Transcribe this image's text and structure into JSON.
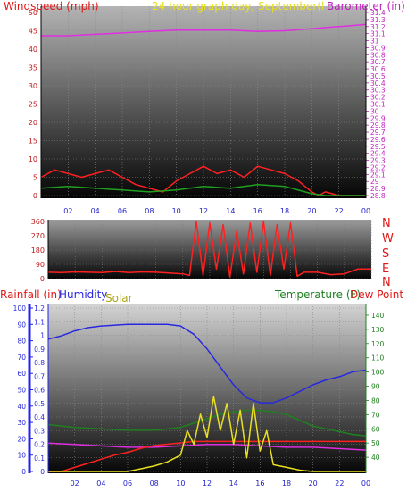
{
  "chart_data": [
    {
      "type": "line",
      "title": "24 hour graph day, September(l",
      "left_axis_label": "Windspeed (mph)",
      "right_axis_label": "Barometer (in)",
      "x_ticks": [
        "02",
        "04",
        "06",
        "08",
        "10",
        "12",
        "14",
        "16",
        "18",
        "20",
        "22",
        "00"
      ],
      "y_left_ticks": [
        "0",
        "5",
        "10",
        "15",
        "20",
        "25",
        "30",
        "35",
        "40",
        "45",
        "50"
      ],
      "y_left_range": [
        0,
        50
      ],
      "y_right_ticks": [
        "28.8",
        "28.9",
        "29",
        "29.1",
        "29.2",
        "29.3",
        "29.4",
        "29.5",
        "29.6",
        "29.7",
        "29.8",
        "29.9",
        "30",
        "30.1",
        "30.2",
        "30.3",
        "30.4",
        "30.5",
        "30.6",
        "30.7",
        "30.8",
        "30.9",
        "31",
        "31.1",
        "31.2",
        "31.3",
        "31.4"
      ],
      "y_right_range": [
        28.8,
        31.4
      ],
      "x_range": [
        0,
        24
      ],
      "series": [
        {
          "role": "barometer",
          "axis": "right",
          "color": "#e02ee0",
          "x": [
            0,
            2,
            4,
            6,
            8,
            10,
            12,
            14,
            16,
            18,
            20,
            22,
            24
          ],
          "y": [
            31.07,
            31.07,
            31.09,
            31.11,
            31.13,
            31.15,
            31.15,
            31.15,
            31.13,
            31.14,
            31.17,
            31.2,
            31.23
          ]
        },
        {
          "role": "gust",
          "axis": "left",
          "color": "#ff2020",
          "x": [
            0,
            1,
            2,
            3,
            4,
            5,
            6,
            7,
            8,
            9,
            10,
            11,
            12,
            13,
            14,
            15,
            16,
            17,
            18,
            19,
            20,
            20.5,
            21,
            22,
            23,
            24
          ],
          "y": [
            5,
            7,
            6,
            5,
            6,
            7,
            5,
            3,
            2,
            1,
            4,
            6,
            8,
            6,
            7,
            5,
            8,
            7,
            6,
            4,
            1,
            0,
            1,
            0,
            0,
            0
          ]
        },
        {
          "role": "average",
          "axis": "left",
          "color": "#20a020",
          "x": [
            0,
            2,
            4,
            6,
            8,
            10,
            12,
            14,
            16,
            18,
            20,
            21,
            24
          ],
          "y": [
            2,
            2.5,
            2,
            1.5,
            1,
            1.5,
            2.5,
            2,
            3,
            2.5,
            0.5,
            0,
            0
          ]
        }
      ],
      "grid": true
    },
    {
      "type": "line",
      "title": "",
      "right_labels": [
        "N",
        "W",
        "S",
        "E",
        "N"
      ],
      "y_left_ticks": [
        "0",
        "90",
        "180",
        "270",
        "360"
      ],
      "y_range": [
        0,
        360
      ],
      "x_range": [
        0,
        24
      ],
      "series": [
        {
          "role": "wind_direction",
          "color": "#ff2020",
          "x": [
            0,
            1,
            2,
            3,
            4,
            5,
            6,
            7,
            8,
            9,
            10,
            10.5,
            11,
            11.5,
            12,
            12.5,
            13,
            13.5,
            14,
            14.5,
            15,
            15.5,
            16,
            16.5,
            17,
            17.5,
            18,
            18.5,
            19,
            20,
            21,
            22,
            23,
            24
          ],
          "y": [
            40,
            38,
            42,
            40,
            38,
            45,
            38,
            42,
            40,
            35,
            30,
            20,
            360,
            20,
            350,
            60,
            340,
            10,
            300,
            30,
            350,
            40,
            360,
            20,
            340,
            60,
            350,
            15,
            40,
            40,
            25,
            30,
            60,
            60
          ]
        }
      ]
    },
    {
      "type": "line",
      "title": "",
      "labels": [
        "Rainfall (in)",
        "Humidity",
        "Solar",
        "Temperature (F)",
        "Dew Point ("
      ],
      "rain_ticks": [
        "0",
        "0.1",
        "0.2",
        "0.3",
        "0.4",
        "0.5",
        "0.6",
        "0.7",
        "0.8",
        "0.9",
        "1",
        "1.1",
        "1.2"
      ],
      "rain_range": [
        0,
        1.2
      ],
      "humidity_ticks": [
        "0",
        "10",
        "20",
        "30",
        "40",
        "50",
        "60",
        "70",
        "80",
        "90",
        "100"
      ],
      "humidity_range": [
        0,
        100
      ],
      "temp_ticks": [
        "40",
        "50",
        "60",
        "70",
        "80",
        "90",
        "100",
        "110",
        "120",
        "130",
        "140"
      ],
      "temp_range": [
        30,
        145
      ],
      "x_ticks": [
        "02",
        "04",
        "06",
        "08",
        "10",
        "12",
        "14",
        "16",
        "18",
        "20",
        "22",
        "00"
      ],
      "x_range": [
        0,
        24
      ],
      "series": [
        {
          "role": "humidity",
          "axis": "humidity",
          "color": "#2828e0",
          "x": [
            0,
            1,
            2,
            3,
            4,
            6,
            8,
            9,
            10,
            11,
            12,
            13,
            14,
            15,
            16,
            17,
            18,
            19,
            20,
            21,
            22,
            23,
            24
          ],
          "y": [
            81,
            83,
            86,
            88,
            89,
            90,
            90,
            90,
            89,
            84,
            75,
            64,
            53,
            45,
            42,
            42,
            45,
            49,
            53,
            56,
            58,
            61,
            62
          ]
        },
        {
          "role": "temperature",
          "axis": "temp",
          "color": "#208020",
          "x": [
            0,
            2,
            4,
            6,
            8,
            10,
            11,
            12,
            13,
            14,
            15,
            16,
            17,
            18,
            19,
            20,
            21,
            22,
            23,
            24
          ],
          "y": [
            63,
            61,
            60,
            59,
            59,
            61,
            64,
            67,
            70,
            72,
            73,
            73,
            72,
            70,
            66,
            62,
            60,
            58,
            56,
            55
          ]
        },
        {
          "role": "dew_point",
          "axis": "temp",
          "color": "#e02ee0",
          "x": [
            0,
            2,
            4,
            6,
            8,
            10,
            12,
            14,
            16,
            18,
            20,
            22,
            24
          ],
          "y": [
            50,
            49,
            48,
            47,
            47,
            48,
            49,
            49,
            48,
            47,
            47,
            46,
            45
          ]
        },
        {
          "role": "rainfall",
          "axis": "rain",
          "color": "#ff2020",
          "x": [
            0,
            1,
            2,
            3,
            4,
            5,
            6,
            7,
            8,
            9,
            10,
            11,
            12,
            20,
            24
          ],
          "y": [
            0,
            0,
            0.03,
            0.06,
            0.09,
            0.12,
            0.14,
            0.17,
            0.19,
            0.2,
            0.21,
            0.22,
            0.22,
            0.22,
            0.22
          ]
        },
        {
          "role": "solar",
          "axis": "rain",
          "color": "#e8e020",
          "x": [
            0,
            6,
            7,
            8,
            9,
            10,
            10.5,
            11,
            11.5,
            12,
            12.5,
            13,
            13.5,
            14,
            14.5,
            15,
            15.5,
            16,
            16.5,
            17,
            18,
            19,
            20,
            24
          ],
          "y": [
            0,
            0,
            0.02,
            0.04,
            0.07,
            0.12,
            0.3,
            0.2,
            0.42,
            0.25,
            0.55,
            0.3,
            0.5,
            0.2,
            0.45,
            0.1,
            0.5,
            0.15,
            0.3,
            0.05,
            0.03,
            0.01,
            0,
            0
          ]
        }
      ]
    }
  ]
}
